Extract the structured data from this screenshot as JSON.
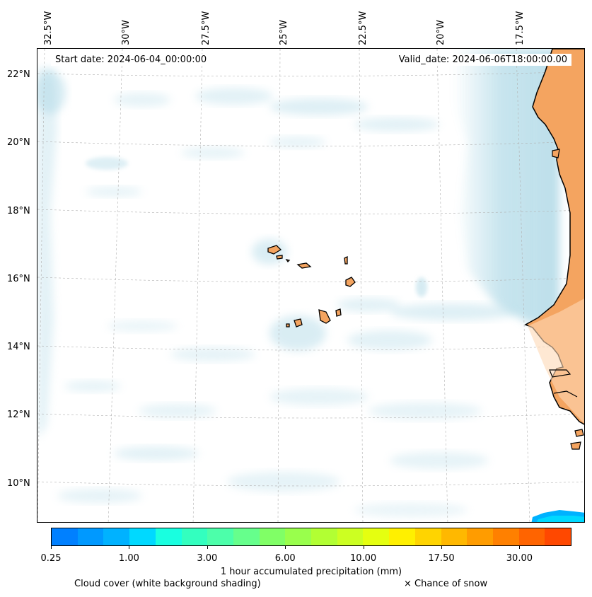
{
  "header": {
    "start_date": "Start date: 2024-06-04_00:00:00",
    "valid_date": "Valid_date: 2024-06-06T18:00:00.00"
  },
  "axes": {
    "longitude_labels": [
      "32.5°W",
      "30°W",
      "27.5°W",
      "25°W",
      "22.5°W",
      "20°W",
      "17.5°W"
    ],
    "latitude_labels": [
      "22°N",
      "20°N",
      "18°N",
      "16°N",
      "14°N",
      "12°N",
      "10°N"
    ]
  },
  "colorbar": {
    "colors": [
      "#0080ff",
      "#0099ff",
      "#00b2ff",
      "#00d9ff",
      "#19ffe0",
      "#33ffbf",
      "#4cffaa",
      "#66ff8c",
      "#80ff66",
      "#99ff4c",
      "#b2ff33",
      "#ccff22",
      "#e5ff10",
      "#fff000",
      "#ffd400",
      "#ffb800",
      "#ff9c00",
      "#ff8000",
      "#ff6400",
      "#ff4800"
    ],
    "tick_labels": [
      "0.25",
      "1.00",
      "3.00",
      "6.00",
      "10.00",
      "17.50",
      "30.00"
    ],
    "label": "1 hour accumulated precipitation (mm)"
  },
  "legend": {
    "cloud_cover": "Cloud cover (white background shading)",
    "snow": "× Chance of snow"
  },
  "map_colors": {
    "land": "#f4a460",
    "cloud": "#add8e6",
    "coast": "#000000"
  }
}
